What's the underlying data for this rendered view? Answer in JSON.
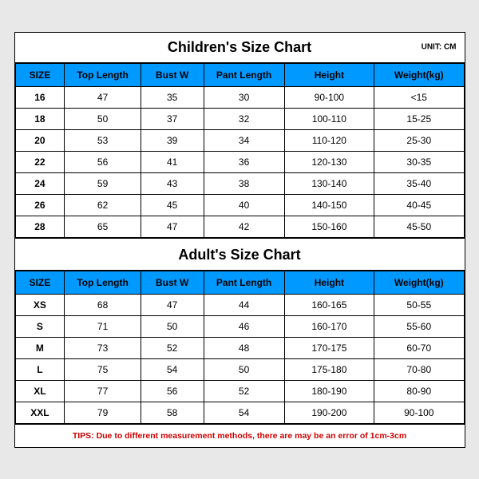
{
  "children_chart": {
    "title": "Children's Size Chart",
    "unit": "UNIT: CM",
    "columns": [
      "SIZE",
      "Top Length",
      "Bust W",
      "Pant Length",
      "Height",
      "Weight(kg)"
    ],
    "rows": [
      [
        "16",
        "47",
        "35",
        "30",
        "90-100",
        "<15"
      ],
      [
        "18",
        "50",
        "37",
        "32",
        "100-110",
        "15-25"
      ],
      [
        "20",
        "53",
        "39",
        "34",
        "110-120",
        "25-30"
      ],
      [
        "22",
        "56",
        "41",
        "36",
        "120-130",
        "30-35"
      ],
      [
        "24",
        "59",
        "43",
        "38",
        "130-140",
        "35-40"
      ],
      [
        "26",
        "62",
        "45",
        "40",
        "140-150",
        "40-45"
      ],
      [
        "28",
        "65",
        "47",
        "42",
        "150-160",
        "45-50"
      ]
    ]
  },
  "adult_chart": {
    "title": "Adult's Size Chart",
    "columns": [
      "SIZE",
      "Top Length",
      "Bust W",
      "Pant Length",
      "Height",
      "Weight(kg)"
    ],
    "rows": [
      [
        "XS",
        "68",
        "47",
        "44",
        "160-165",
        "50-55"
      ],
      [
        "S",
        "71",
        "50",
        "46",
        "160-170",
        "55-60"
      ],
      [
        "M",
        "73",
        "52",
        "48",
        "170-175",
        "60-70"
      ],
      [
        "L",
        "75",
        "54",
        "50",
        "175-180",
        "70-80"
      ],
      [
        "XL",
        "77",
        "56",
        "52",
        "180-190",
        "80-90"
      ],
      [
        "XXL",
        "79",
        "58",
        "54",
        "190-200",
        "90-100"
      ]
    ]
  },
  "tips": "TIPS: Due to different measurement methods, there are may be an error of 1cm-3cm",
  "colors": {
    "header_bg": "#0099ff",
    "tips_color": "#cc0000",
    "border": "#000000",
    "bg": "#ffffff"
  },
  "column_widths": [
    "11%",
    "17%",
    "14%",
    "18%",
    "20%",
    "20%"
  ]
}
